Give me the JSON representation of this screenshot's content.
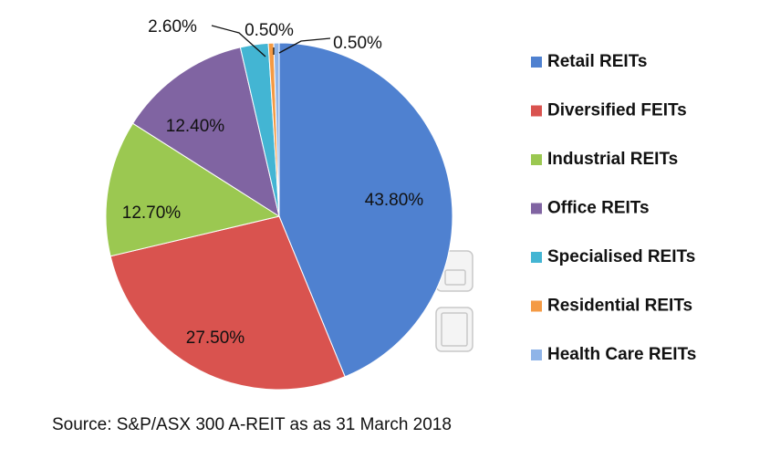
{
  "chart_data": {
    "type": "pie",
    "categories": [
      "Retail REITs",
      "Diversified FEITs",
      "Industrial REITs",
      "Office REITs",
      "Specialised REITs",
      "Residential REITs",
      "Health Care REITs"
    ],
    "values": [
      43.8,
      27.5,
      12.7,
      12.4,
      2.6,
      0.5,
      0.5
    ],
    "value_labels": [
      "43.80%",
      "27.50%",
      "12.70%",
      "12.40%",
      "2.60%",
      "0.50%",
      "0.50%"
    ],
    "colors": [
      "#4f81d0",
      "#d9534f",
      "#9bc851",
      "#8064a2",
      "#43b5d3",
      "#f49a44",
      "#8fb4e8"
    ],
    "legend": [
      "Retail REITs",
      "Diversified FEITs",
      "Industrial REITs",
      "Office REITs",
      "Specialised REITs",
      "Residential REITs",
      "Health Care REITs"
    ],
    "legend_position": "right",
    "start": "12 o'clock, clockwise",
    "source": "Source: S&P/ASX 300 A-REIT as as 31 March 2018"
  }
}
